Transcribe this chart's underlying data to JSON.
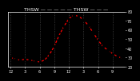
{
  "title": "THSW — — — — — THSW — — —",
  "hours": [
    0,
    1,
    2,
    3,
    4,
    5,
    6,
    7,
    8,
    9,
    10,
    11,
    12,
    13,
    14,
    15,
    16,
    17,
    18,
    19,
    20,
    21,
    22,
    23
  ],
  "values": [
    30,
    28,
    27,
    28,
    27,
    26,
    25,
    27,
    33,
    42,
    54,
    64,
    72,
    76,
    75,
    71,
    65,
    57,
    49,
    42,
    38,
    34,
    31,
    29
  ],
  "line_color": "#ff0000",
  "marker_color": "#000000",
  "bg_color": "#000000",
  "plot_bg_color": "#000000",
  "grid_color": "#555555",
  "text_color": "#ffffff",
  "ylim_min": 20,
  "ylim_max": 80,
  "ytick_vals": [
    20,
    30,
    40,
    50,
    60,
    70,
    80
  ],
  "ytick_labels": [
    "20",
    "30",
    "40",
    "50",
    "60",
    "70",
    "80"
  ],
  "xtick_vals": [
    0,
    3,
    6,
    9,
    12,
    15,
    18,
    21
  ],
  "xtick_labels": [
    "12",
    "3",
    "6",
    "9",
    "12",
    "3",
    "6",
    "9"
  ],
  "grid_x_positions": [
    0,
    3,
    6,
    9,
    12,
    15,
    18,
    21
  ],
  "title_fontsize": 4.5,
  "tick_fontsize": 3.5,
  "line_width": 0.9,
  "marker_size": 1.5
}
